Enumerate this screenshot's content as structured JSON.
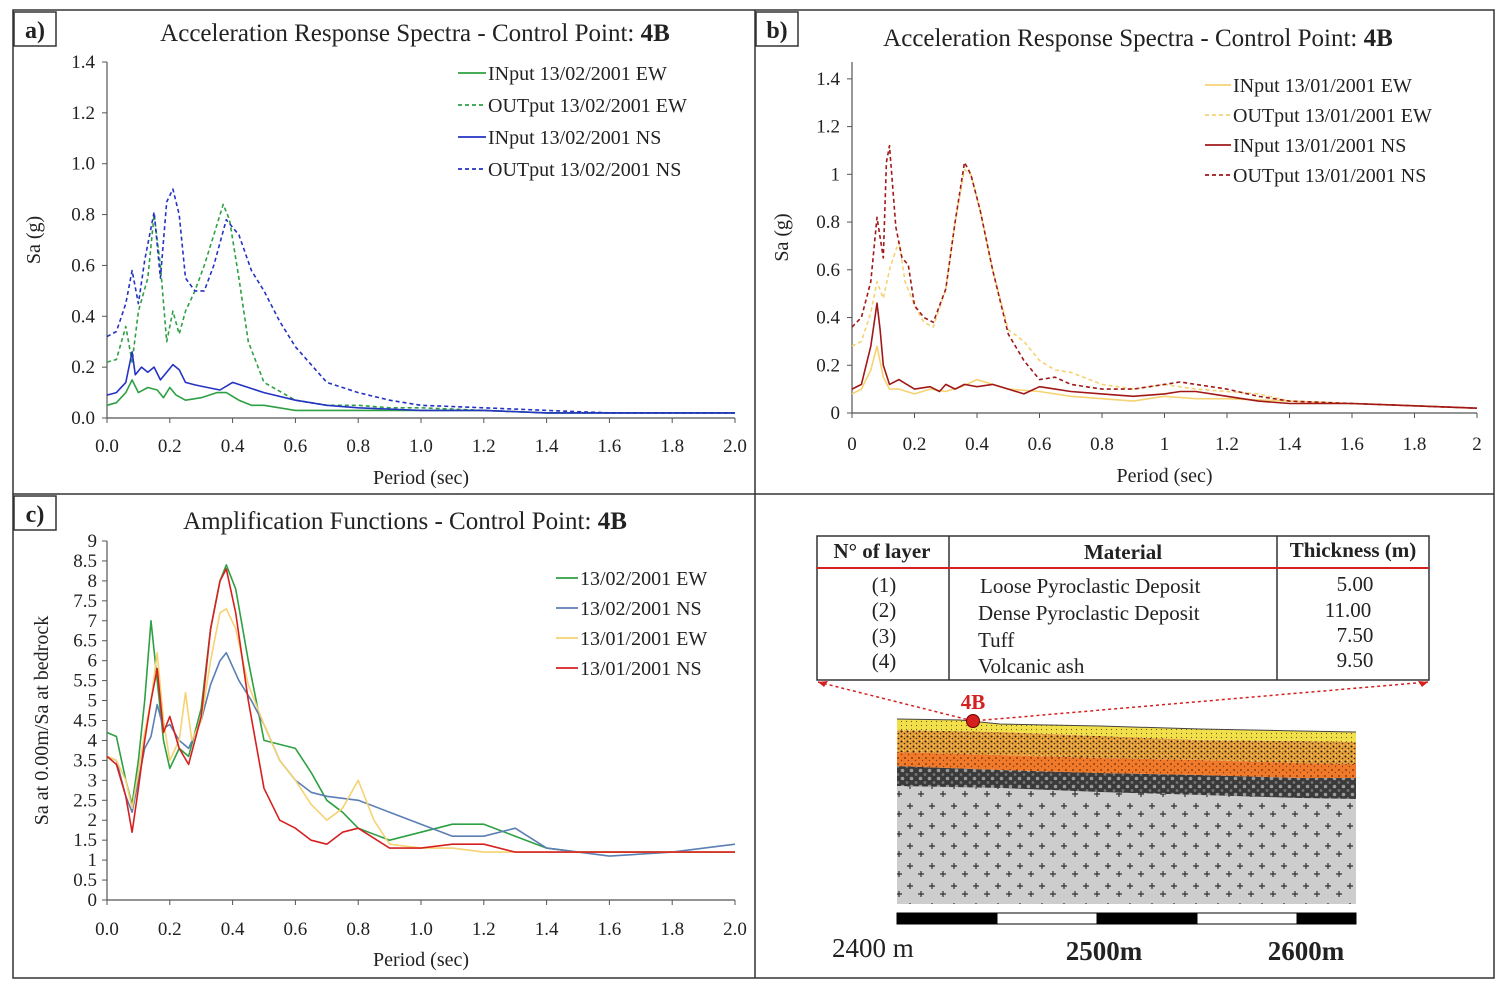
{
  "colors": {
    "green": "#2ea043",
    "blue": "#2433c2",
    "steel": "#5b7fb5",
    "yellow": "#f5d372",
    "red": "#d62020",
    "darkred": "#a01818",
    "frame": "#333333"
  },
  "panels": {
    "a": {
      "label": "a)",
      "title_prefix": "Acceleration Response Spectra - Control Point: ",
      "title_bold": "4B"
    },
    "b": {
      "label": "b)",
      "title_prefix": "Acceleration Response Spectra - Control Point: ",
      "title_bold": "4B"
    },
    "c": {
      "label": "c)",
      "title_prefix": "Amplification Functions - Control Point: ",
      "title_bold": "4B"
    }
  },
  "chart_data": [
    {
      "id": "a",
      "type": "line",
      "title": "Acceleration Response Spectra - Control Point: 4B",
      "xlabel": "Period (sec)",
      "ylabel": "Sa (g)",
      "xlim": [
        0,
        2.0
      ],
      "ylim": [
        0,
        1.4
      ],
      "xticks": [
        "0.0",
        "0.2",
        "0.4",
        "0.6",
        "0.8",
        "1.0",
        "1.2",
        "1.4",
        "1.6",
        "1.8",
        "2.0"
      ],
      "yticks": [
        "0.0",
        "0.2",
        "0.4",
        "0.6",
        "0.8",
        "1.0",
        "1.2",
        "1.4"
      ],
      "legend_position": "top-right",
      "series": [
        {
          "name": "INput 13/02/2001 EW",
          "color": "#2ea043",
          "dash": false,
          "x": [
            0,
            0.03,
            0.06,
            0.08,
            0.1,
            0.13,
            0.16,
            0.18,
            0.2,
            0.22,
            0.25,
            0.3,
            0.35,
            0.38,
            0.42,
            0.46,
            0.5,
            0.6,
            0.7,
            0.8,
            1.0,
            1.2,
            1.4,
            1.6,
            1.8,
            2.0
          ],
          "y": [
            0.05,
            0.06,
            0.1,
            0.15,
            0.1,
            0.12,
            0.11,
            0.08,
            0.12,
            0.09,
            0.07,
            0.08,
            0.1,
            0.1,
            0.07,
            0.05,
            0.05,
            0.03,
            0.03,
            0.03,
            0.03,
            0.03,
            0.02,
            0.02,
            0.02,
            0.02
          ]
        },
        {
          "name": "OUTput 13/02/2001 EW",
          "color": "#2ea043",
          "dash": true,
          "x": [
            0,
            0.03,
            0.06,
            0.08,
            0.1,
            0.13,
            0.15,
            0.17,
            0.19,
            0.21,
            0.23,
            0.25,
            0.28,
            0.31,
            0.34,
            0.37,
            0.39,
            0.42,
            0.45,
            0.5,
            0.6,
            0.7,
            0.8,
            0.9,
            1.0,
            1.2,
            1.4,
            1.6,
            1.8,
            2.0
          ],
          "y": [
            0.22,
            0.23,
            0.36,
            0.22,
            0.42,
            0.55,
            0.8,
            0.6,
            0.3,
            0.42,
            0.33,
            0.42,
            0.5,
            0.6,
            0.72,
            0.84,
            0.78,
            0.55,
            0.3,
            0.14,
            0.07,
            0.05,
            0.05,
            0.04,
            0.04,
            0.03,
            0.02,
            0.02,
            0.02,
            0.02
          ]
        },
        {
          "name": "INput 13/02/2001 NS",
          "color": "#2433c2",
          "dash": false,
          "x": [
            0,
            0.03,
            0.06,
            0.08,
            0.09,
            0.11,
            0.13,
            0.15,
            0.17,
            0.19,
            0.21,
            0.23,
            0.25,
            0.28,
            0.32,
            0.36,
            0.4,
            0.45,
            0.5,
            0.6,
            0.7,
            0.8,
            1.0,
            1.2,
            1.4,
            1.6,
            1.8,
            2.0
          ],
          "y": [
            0.09,
            0.1,
            0.14,
            0.26,
            0.17,
            0.2,
            0.18,
            0.2,
            0.15,
            0.18,
            0.21,
            0.19,
            0.14,
            0.13,
            0.12,
            0.11,
            0.14,
            0.12,
            0.1,
            0.07,
            0.05,
            0.04,
            0.03,
            0.03,
            0.02,
            0.02,
            0.02,
            0.02
          ]
        },
        {
          "name": "OUTput 13/02/2001 NS",
          "color": "#2433c2",
          "dash": true,
          "x": [
            0,
            0.03,
            0.06,
            0.08,
            0.1,
            0.12,
            0.15,
            0.17,
            0.19,
            0.21,
            0.23,
            0.25,
            0.28,
            0.31,
            0.34,
            0.38,
            0.42,
            0.46,
            0.5,
            0.55,
            0.6,
            0.7,
            0.8,
            0.9,
            1.0,
            1.2,
            1.4,
            1.6,
            1.8,
            2.0
          ],
          "y": [
            0.32,
            0.34,
            0.45,
            0.58,
            0.45,
            0.62,
            0.81,
            0.55,
            0.85,
            0.9,
            0.8,
            0.55,
            0.5,
            0.5,
            0.6,
            0.78,
            0.72,
            0.58,
            0.5,
            0.38,
            0.28,
            0.14,
            0.1,
            0.07,
            0.05,
            0.04,
            0.03,
            0.02,
            0.02,
            0.02
          ]
        }
      ]
    },
    {
      "id": "b",
      "type": "line",
      "title": "Acceleration Response Spectra - Control Point: 4B",
      "xlabel": "Period (sec)",
      "ylabel": "Sa (g)",
      "xlim": [
        0,
        2
      ],
      "ylim": [
        0,
        1.5
      ],
      "yaxis_max_label": 1.4,
      "xticks": [
        "0",
        "0.2",
        "0.4",
        "0.6",
        "0.8",
        "1",
        "1.2",
        "1.4",
        "1.6",
        "1.8",
        "2"
      ],
      "yticks": [
        "0",
        "0.2",
        "0.4",
        "0.6",
        "0.8",
        "1",
        "1.2",
        "1.4"
      ],
      "legend_position": "top-right",
      "series": [
        {
          "name": "INput 13/01/2001 EW",
          "color": "#f5d372",
          "dash": false,
          "x": [
            0,
            0.03,
            0.06,
            0.08,
            0.1,
            0.12,
            0.15,
            0.2,
            0.25,
            0.3,
            0.35,
            0.4,
            0.5,
            0.6,
            0.7,
            0.8,
            0.9,
            1.0,
            1.1,
            1.2,
            1.4,
            1.6,
            1.8,
            2.0
          ],
          "y": [
            0.08,
            0.1,
            0.18,
            0.28,
            0.15,
            0.1,
            0.1,
            0.08,
            0.1,
            0.09,
            0.11,
            0.14,
            0.1,
            0.09,
            0.07,
            0.06,
            0.05,
            0.07,
            0.06,
            0.06,
            0.05,
            0.04,
            0.03,
            0.02
          ]
        },
        {
          "name": "OUTput 13/01/2001 EW",
          "color": "#f5d372",
          "dash": true,
          "x": [
            0,
            0.03,
            0.06,
            0.08,
            0.1,
            0.12,
            0.15,
            0.17,
            0.2,
            0.23,
            0.26,
            0.3,
            0.33,
            0.36,
            0.38,
            0.41,
            0.45,
            0.5,
            0.55,
            0.6,
            0.65,
            0.7,
            0.8,
            0.9,
            1.0,
            1.1,
            1.2,
            1.3,
            1.4,
            1.6,
            1.8,
            2.0
          ],
          "y": [
            0.28,
            0.3,
            0.42,
            0.55,
            0.48,
            0.6,
            0.72,
            0.55,
            0.45,
            0.38,
            0.36,
            0.52,
            0.8,
            1.02,
            1.0,
            0.85,
            0.6,
            0.35,
            0.3,
            0.22,
            0.18,
            0.17,
            0.12,
            0.1,
            0.12,
            0.1,
            0.09,
            0.08,
            0.05,
            0.04,
            0.03,
            0.02
          ]
        },
        {
          "name": "INput 13/01/2001 NS",
          "color": "#a01818",
          "dash": false,
          "x": [
            0,
            0.03,
            0.06,
            0.08,
            0.09,
            0.1,
            0.12,
            0.15,
            0.2,
            0.25,
            0.28,
            0.3,
            0.33,
            0.36,
            0.4,
            0.45,
            0.5,
            0.55,
            0.6,
            0.65,
            0.7,
            0.8,
            0.9,
            1.0,
            1.05,
            1.1,
            1.2,
            1.3,
            1.4,
            1.6,
            1.8,
            2.0
          ],
          "y": [
            0.1,
            0.12,
            0.28,
            0.46,
            0.35,
            0.2,
            0.12,
            0.14,
            0.1,
            0.11,
            0.09,
            0.12,
            0.1,
            0.12,
            0.11,
            0.12,
            0.1,
            0.08,
            0.11,
            0.1,
            0.09,
            0.08,
            0.07,
            0.08,
            0.09,
            0.09,
            0.07,
            0.05,
            0.04,
            0.04,
            0.03,
            0.02
          ]
        },
        {
          "name": "OUTput 13/01/2001 NS",
          "color": "#a01818",
          "dash": true,
          "x": [
            0,
            0.03,
            0.06,
            0.08,
            0.1,
            0.11,
            0.12,
            0.14,
            0.16,
            0.18,
            0.2,
            0.23,
            0.26,
            0.3,
            0.33,
            0.36,
            0.38,
            0.41,
            0.45,
            0.5,
            0.55,
            0.6,
            0.65,
            0.7,
            0.8,
            0.9,
            1.0,
            1.05,
            1.1,
            1.2,
            1.3,
            1.4,
            1.6,
            1.8,
            2.0
          ],
          "y": [
            0.36,
            0.4,
            0.55,
            0.82,
            0.65,
            1.05,
            1.12,
            0.78,
            0.65,
            0.62,
            0.45,
            0.4,
            0.38,
            0.52,
            0.8,
            1.05,
            1.0,
            0.85,
            0.6,
            0.33,
            0.22,
            0.14,
            0.15,
            0.12,
            0.1,
            0.1,
            0.12,
            0.13,
            0.12,
            0.1,
            0.07,
            0.05,
            0.04,
            0.03,
            0.02
          ]
        }
      ]
    },
    {
      "id": "c",
      "type": "line",
      "title": "Amplification Functions - Control Point: 4B",
      "xlabel": "Period (sec)",
      "ylabel": "Sa at 0.00m/Sa at bedrock",
      "xlim": [
        0,
        2.0
      ],
      "ylim": [
        0,
        9
      ],
      "xticks": [
        "0.0",
        "0.2",
        "0.4",
        "0.6",
        "0.8",
        "1.0",
        "1.2",
        "1.4",
        "1.6",
        "1.8",
        "2.0"
      ],
      "yticks": [
        "0",
        "0.5",
        "1",
        "1.5",
        "2",
        "2.5",
        "3",
        "3.5",
        "4",
        "4.5",
        "5",
        "5.5",
        "6",
        "6.5",
        "7",
        "7.5",
        "8",
        "8.5",
        "9"
      ],
      "legend_position": "top-right",
      "series": [
        {
          "name": "13/02/2001 EW",
          "color": "#2ea043",
          "dash": false,
          "x": [
            0,
            0.03,
            0.06,
            0.08,
            0.1,
            0.12,
            0.14,
            0.16,
            0.18,
            0.2,
            0.23,
            0.26,
            0.3,
            0.33,
            0.36,
            0.38,
            0.41,
            0.45,
            0.5,
            0.55,
            0.6,
            0.65,
            0.7,
            0.75,
            0.8,
            0.9,
            1.0,
            1.1,
            1.2,
            1.3,
            1.4,
            1.5,
            1.6,
            1.8,
            2.0
          ],
          "y": [
            4.2,
            4.1,
            3.0,
            2.4,
            3.5,
            5.0,
            7.0,
            5.5,
            4.0,
            3.3,
            3.8,
            3.6,
            4.8,
            6.8,
            8.0,
            8.4,
            7.8,
            6.0,
            4.0,
            3.9,
            3.8,
            3.2,
            2.5,
            2.2,
            1.8,
            1.5,
            1.7,
            1.9,
            1.9,
            1.6,
            1.3,
            1.2,
            1.2,
            1.2,
            1.2
          ]
        },
        {
          "name": "13/02/2001 NS",
          "color": "#5b7fb5",
          "dash": false,
          "x": [
            0,
            0.03,
            0.06,
            0.08,
            0.1,
            0.12,
            0.14,
            0.16,
            0.18,
            0.2,
            0.23,
            0.26,
            0.3,
            0.33,
            0.36,
            0.38,
            0.42,
            0.46,
            0.5,
            0.55,
            0.6,
            0.65,
            0.7,
            0.8,
            0.9,
            1.0,
            1.1,
            1.2,
            1.3,
            1.4,
            1.5,
            1.6,
            1.8,
            2.0
          ],
          "y": [
            3.6,
            3.5,
            2.6,
            2.2,
            3.0,
            3.8,
            4.1,
            4.9,
            4.3,
            4.4,
            4.0,
            3.8,
            4.5,
            5.4,
            6.0,
            6.2,
            5.5,
            5.0,
            4.4,
            3.5,
            3.0,
            2.7,
            2.6,
            2.5,
            2.2,
            1.9,
            1.6,
            1.6,
            1.8,
            1.3,
            1.2,
            1.1,
            1.2,
            1.4
          ]
        },
        {
          "name": "13/01/2001 EW",
          "color": "#f5d372",
          "dash": false,
          "x": [
            0,
            0.03,
            0.06,
            0.08,
            0.1,
            0.12,
            0.14,
            0.16,
            0.18,
            0.2,
            0.23,
            0.25,
            0.27,
            0.3,
            0.33,
            0.36,
            0.38,
            0.41,
            0.45,
            0.5,
            0.55,
            0.6,
            0.65,
            0.7,
            0.75,
            0.8,
            0.85,
            0.9,
            1.0,
            1.1,
            1.2,
            1.3,
            1.4,
            1.6,
            1.8,
            2.0
          ],
          "y": [
            3.6,
            3.5,
            3.0,
            2.3,
            3.2,
            4.2,
            5.0,
            6.2,
            4.5,
            3.5,
            4.0,
            5.2,
            4.0,
            4.5,
            6.0,
            7.2,
            7.3,
            6.8,
            5.4,
            4.4,
            3.5,
            3.0,
            2.4,
            2.0,
            2.3,
            3.0,
            2.0,
            1.4,
            1.3,
            1.3,
            1.2,
            1.2,
            1.2,
            1.2,
            1.2,
            1.2
          ]
        },
        {
          "name": "13/01/2001 NS",
          "color": "#d62020",
          "dash": false,
          "x": [
            0,
            0.03,
            0.06,
            0.08,
            0.1,
            0.12,
            0.14,
            0.16,
            0.18,
            0.2,
            0.23,
            0.26,
            0.3,
            0.33,
            0.36,
            0.38,
            0.41,
            0.45,
            0.5,
            0.55,
            0.6,
            0.65,
            0.7,
            0.75,
            0.8,
            0.9,
            1.0,
            1.1,
            1.2,
            1.3,
            1.4,
            1.6,
            1.8,
            2.0
          ],
          "y": [
            3.6,
            3.4,
            2.6,
            1.7,
            2.8,
            4.0,
            5.0,
            5.8,
            4.2,
            4.6,
            3.8,
            3.4,
            4.6,
            6.8,
            8.0,
            8.3,
            7.2,
            5.0,
            2.8,
            2.0,
            1.8,
            1.5,
            1.4,
            1.7,
            1.8,
            1.3,
            1.3,
            1.4,
            1.4,
            1.2,
            1.2,
            1.2,
            1.2,
            1.2
          ]
        }
      ]
    }
  ],
  "table": {
    "headers": [
      "N° of layer",
      "Material",
      "Thickness (m)"
    ],
    "rows": [
      {
        "n": "(1)",
        "material": "Loose Pyroclastic Deposit",
        "thickness": "5.00"
      },
      {
        "n": "(2)",
        "material": "Dense Pyroclastic Deposit",
        "thickness": "11.00"
      },
      {
        "n": "(3)",
        "material": "Tuff",
        "thickness": "7.50"
      },
      {
        "n": "(4)",
        "material": "Volcanic ash",
        "thickness": "9.50"
      }
    ]
  },
  "section": {
    "point_label": "4B",
    "scale_labels": [
      "2400 m",
      "2500m",
      "2600m"
    ]
  }
}
